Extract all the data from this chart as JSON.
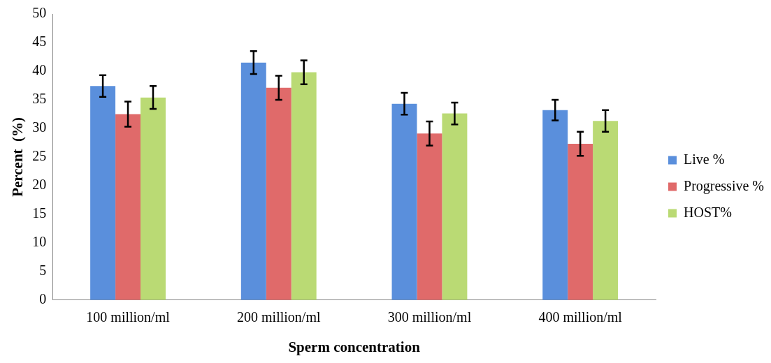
{
  "chart_data": {
    "type": "bar",
    "xlabel": "Sperm concentration",
    "ylabel": "Percent  (%)",
    "categories": [
      "100 million/ml",
      "200 million/ml",
      "300 million/ml",
      "400 million/ml"
    ],
    "series": [
      {
        "name": "Live %",
        "color": "#5a8fdc",
        "values": [
          37.4,
          41.5,
          34.3,
          33.2
        ],
        "errors": [
          1.9,
          2,
          1.9,
          1.8
        ]
      },
      {
        "name": "Progressive %",
        "color": "#e06a6a",
        "values": [
          32.5,
          37.1,
          29.1,
          27.3
        ],
        "errors": [
          2.2,
          2.1,
          2.1,
          2.1
        ]
      },
      {
        "name": "HOST%",
        "color": "#bada74",
        "values": [
          35.4,
          39.8,
          32.6,
          31.3
        ],
        "errors": [
          2,
          2.1,
          1.9,
          1.9
        ]
      }
    ],
    "ylim": [
      0,
      50
    ],
    "yticks": [
      0,
      5,
      10,
      15,
      20,
      25,
      30,
      35,
      40,
      45,
      50
    ],
    "grid": false,
    "legend": "right"
  }
}
